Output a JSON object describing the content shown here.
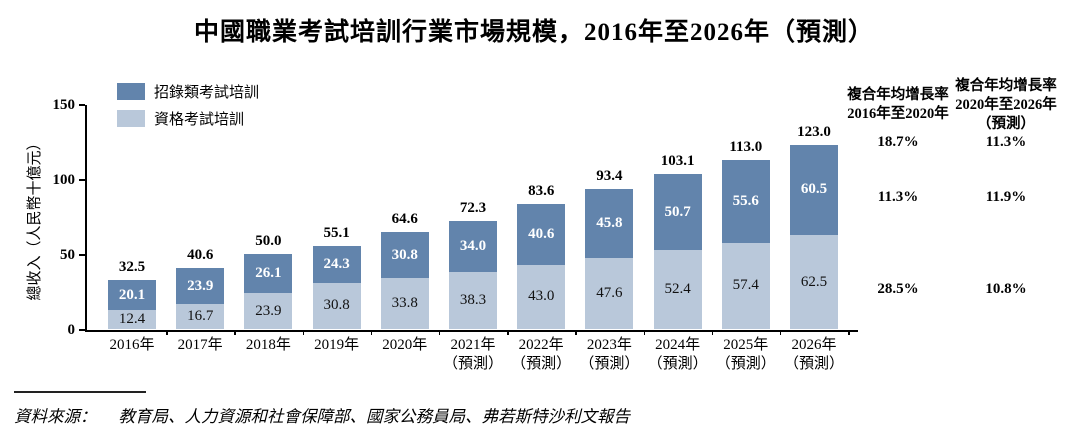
{
  "title": "中國職業考試培訓行業市場規模，2016年至2026年（預測）",
  "legend": {
    "items": [
      {
        "label": "招錄類考試培訓",
        "color": "#6284ac"
      },
      {
        "label": "資格考試培訓",
        "color": "#b9c8da"
      }
    ]
  },
  "chart_data": {
    "type": "bar",
    "stacked": true,
    "title": "中國職業考試培訓行業市場規模，2016年至2026年（預測）",
    "ylabel": "總收入（人民幣十億元）",
    "ylim": [
      0,
      150
    ],
    "yticks": [
      "0",
      "50",
      "100",
      "150"
    ],
    "grid": false,
    "legend_position": "top-left",
    "categories": [
      {
        "year": "2016年",
        "note": ""
      },
      {
        "year": "2017年",
        "note": ""
      },
      {
        "year": "2018年",
        "note": ""
      },
      {
        "year": "2019年",
        "note": ""
      },
      {
        "year": "2020年",
        "note": ""
      },
      {
        "year": "2021年",
        "note": "（預測）"
      },
      {
        "year": "2022年",
        "note": "（預測）"
      },
      {
        "year": "2023年",
        "note": "（預測）"
      },
      {
        "year": "2024年",
        "note": "（預測）"
      },
      {
        "year": "2025年",
        "note": "（預測）"
      },
      {
        "year": "2026年",
        "note": "（預測）"
      }
    ],
    "series": [
      {
        "name": "招錄類考試培訓",
        "position": "top",
        "color": "#6284ac",
        "values": [
          "20.1",
          "23.9",
          "26.1",
          "24.3",
          "30.8",
          "34.0",
          "40.6",
          "45.8",
          "50.7",
          "55.6",
          "60.5"
        ]
      },
      {
        "name": "資格考試培訓",
        "position": "bottom",
        "color": "#b9c8da",
        "values": [
          "12.4",
          "16.7",
          "23.9",
          "30.8",
          "33.8",
          "38.3",
          "43.0",
          "47.6",
          "52.4",
          "57.4",
          "62.5"
        ]
      }
    ],
    "totals": [
      "32.5",
      "40.6",
      "50.0",
      "55.1",
      "64.6",
      "72.3",
      "83.6",
      "93.4",
      "103.1",
      "113.0",
      "123.0"
    ]
  },
  "cagr_columns": [
    {
      "header_lines": [
        "複合年均增長率",
        "2016年至2020年"
      ],
      "values": [
        "18.7%",
        "11.3%",
        "28.5%"
      ]
    },
    {
      "header_lines": [
        "複合年均增長率",
        "2020年至2026年",
        "（預測）"
      ],
      "values": [
        "11.3%",
        "11.9%",
        "10.8%"
      ]
    }
  ],
  "source": {
    "prefix": "資料來源：",
    "text": "教育局、人力資源和社會保障部、國家公務員局、弗若斯特沙利文報告"
  }
}
